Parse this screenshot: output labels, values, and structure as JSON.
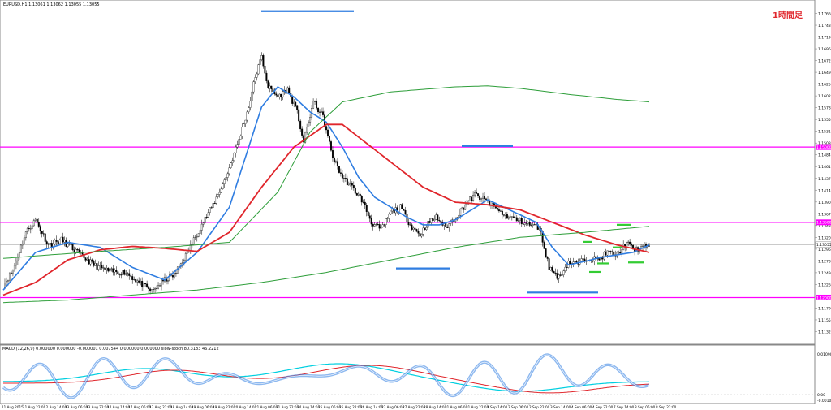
{
  "header": {
    "symbol_info": "EURUSD,H1 1.13061 1.13062 1.13055 1.13055",
    "timeframe_label": "1時間足"
  },
  "colors": {
    "background": "#ffffff",
    "candle_up": "#ffffff",
    "candle_down": "#000000",
    "sma_fast": "#2f7de1",
    "sma_mid": "#e0262c",
    "sma_slow": "#2e9e3a",
    "sma_long": "#2e9e3a",
    "level_line": "#ff00ff",
    "range_marker": "#2f7de1",
    "green_marker": "#33cc33",
    "macd_main": "#2f7de1",
    "macd_signal": "#00cfe0",
    "macd_red": "#e0262c",
    "grid": "#c8c8c8"
  },
  "chart_data": [
    {
      "type": "candlestick",
      "y_axis_ticks": [
        "1.17900",
        "1.17665",
        "1.17430",
        "1.17195",
        "1.16960",
        "1.16725",
        "1.16490",
        "1.16255",
        "1.16020",
        "1.15785",
        "1.15550",
        "1.15315",
        "1.15080",
        "1.14845",
        "1.14610",
        "1.14375",
        "1.14140",
        "1.13905",
        "1.13670",
        "1.13435",
        "1.13200",
        "1.12965",
        "1.12730",
        "1.12495",
        "1.12260",
        "1.12025",
        "1.11790",
        "1.11555",
        "1.11320",
        "1.11085"
      ],
      "ylim": [
        1.11085,
        1.179
      ],
      "x_axis_ticks": [
        "11 Aug 2015",
        "11 Aug 22:00",
        "12 Aug 14:00",
        "13 Aug 06:00",
        "13 Aug 22:00",
        "14 Aug 14:00",
        "17 Aug 06:00",
        "17 Aug 22:00",
        "18 Aug 14:00",
        "19 Aug 06:00",
        "19 Aug 22:00",
        "20 Aug 14:00",
        "21 Aug 06:00",
        "21 Aug 22:00",
        "24 Aug 14:00",
        "25 Aug 06:00",
        "25 Aug 22:00",
        "26 Aug 14:00",
        "27 Aug 06:00",
        "27 Aug 22:00",
        "28 Aug 14:00",
        "31 Aug 06:00",
        "31 Aug 22:00",
        "1 Sep 14:00",
        "2 Sep 06:00",
        "2 Sep 22:00",
        "3 Sep 14:00",
        "4 Sep 06:00",
        "4 Sep 22:00",
        "7 Sep 14:00",
        "8 Sep 06:00",
        "8 Sep 22:00"
      ],
      "key_levels": [
        {
          "price": 1.15,
          "tag": "1.15000"
        },
        {
          "price": 1.135,
          "tag": "1.13500"
        },
        {
          "price": 1.12,
          "tag": "1.12000"
        }
      ],
      "current_price": {
        "price": 1.13055,
        "tag": "1.13055"
      },
      "close_anchors": [
        [
          0,
          1.1225
        ],
        [
          6,
          1.1255
        ],
        [
          14,
          1.133
        ],
        [
          20,
          1.1355
        ],
        [
          28,
          1.1305
        ],
        [
          36,
          1.1315
        ],
        [
          46,
          1.129
        ],
        [
          56,
          1.1265
        ],
        [
          66,
          1.1252
        ],
        [
          76,
          1.125
        ],
        [
          84,
          1.123
        ],
        [
          92,
          1.1212
        ],
        [
          100,
          1.1235
        ],
        [
          106,
          1.1245
        ],
        [
          114,
          1.129
        ],
        [
          122,
          1.134
        ],
        [
          130,
          1.1385
        ],
        [
          138,
          1.144
        ],
        [
          146,
          1.1515
        ],
        [
          152,
          1.158
        ],
        [
          156,
          1.164
        ],
        [
          160,
          1.168
        ],
        [
          164,
          1.162
        ],
        [
          170,
          1.16
        ],
        [
          176,
          1.1615
        ],
        [
          182,
          1.157
        ],
        [
          186,
          1.151
        ],
        [
          192,
          1.159
        ],
        [
          198,
          1.156
        ],
        [
          204,
          1.148
        ],
        [
          210,
          1.144
        ],
        [
          216,
          1.142
        ],
        [
          222,
          1.1395
        ],
        [
          228,
          1.135
        ],
        [
          234,
          1.1335
        ],
        [
          240,
          1.137
        ],
        [
          246,
          1.138
        ],
        [
          252,
          1.1345
        ],
        [
          258,
          1.1325
        ],
        [
          262,
          1.1345
        ],
        [
          268,
          1.136
        ],
        [
          274,
          1.134
        ],
        [
          280,
          1.136
        ],
        [
          286,
          1.1385
        ],
        [
          292,
          1.1405
        ],
        [
          298,
          1.1395
        ],
        [
          304,
          1.138
        ],
        [
          310,
          1.1365
        ],
        [
          318,
          1.1355
        ],
        [
          326,
          1.1345
        ],
        [
          332,
          1.134
        ],
        [
          338,
          1.126
        ],
        [
          344,
          1.124
        ],
        [
          350,
          1.127
        ],
        [
          356,
          1.1268
        ],
        [
          362,
          1.128
        ],
        [
          368,
          1.1275
        ],
        [
          374,
          1.129
        ],
        [
          380,
          1.1285
        ],
        [
          386,
          1.131
        ],
        [
          390,
          1.1295
        ],
        [
          396,
          1.13
        ],
        [
          400,
          1.1306
        ]
      ],
      "series": [
        {
          "name": "",
          "period_hint": "fast",
          "color_key": "sma_fast",
          "anchors": [
            [
              0,
              1.1215
            ],
            [
              20,
              1.129
            ],
            [
              40,
              1.131
            ],
            [
              60,
              1.13
            ],
            [
              80,
              1.126
            ],
            [
              100,
              1.1235
            ],
            [
              120,
              1.129
            ],
            [
              140,
              1.138
            ],
            [
              150,
              1.148
            ],
            [
              160,
              1.158
            ],
            [
              170,
              1.162
            ],
            [
              180,
              1.16
            ],
            [
              190,
              1.157
            ],
            [
              200,
              1.155
            ],
            [
              210,
              1.15
            ],
            [
              220,
              1.144
            ],
            [
              230,
              1.14
            ],
            [
              240,
              1.138
            ],
            [
              250,
              1.136
            ],
            [
              260,
              1.1345
            ],
            [
              270,
              1.1345
            ],
            [
              280,
              1.1355
            ],
            [
              290,
              1.1375
            ],
            [
              300,
              1.1395
            ],
            [
              310,
              1.138
            ],
            [
              320,
              1.1365
            ],
            [
              330,
              1.135
            ],
            [
              340,
              1.13
            ],
            [
              350,
              1.1265
            ],
            [
              360,
              1.1272
            ],
            [
              370,
              1.128
            ],
            [
              380,
              1.1285
            ],
            [
              390,
              1.129
            ],
            [
              400,
              1.1305
            ]
          ]
        },
        {
          "name": "",
          "period_hint": "mid",
          "color_key": "sma_mid",
          "anchors": [
            [
              0,
              1.1205
            ],
            [
              20,
              1.123
            ],
            [
              40,
              1.1275
            ],
            [
              60,
              1.1295
            ],
            [
              80,
              1.1302
            ],
            [
              100,
              1.1298
            ],
            [
              120,
              1.1292
            ],
            [
              140,
              1.133
            ],
            [
              160,
              1.142
            ],
            [
              180,
              1.15
            ],
            [
              200,
              1.1545
            ],
            [
              210,
              1.1545
            ],
            [
              220,
              1.152
            ],
            [
              240,
              1.147
            ],
            [
              260,
              1.142
            ],
            [
              280,
              1.139
            ],
            [
              300,
              1.1385
            ],
            [
              320,
              1.1375
            ],
            [
              340,
              1.135
            ],
            [
              360,
              1.1325
            ],
            [
              380,
              1.1305
            ],
            [
              400,
              1.129
            ]
          ]
        },
        {
          "name": "",
          "period_hint": "slow",
          "color_key": "sma_slow",
          "anchors": [
            [
              0,
              1.1278
            ],
            [
              50,
              1.129
            ],
            [
              100,
              1.13
            ],
            [
              140,
              1.131
            ],
            [
              170,
              1.141
            ],
            [
              190,
              1.153
            ],
            [
              210,
              1.159
            ],
            [
              240,
              1.161
            ],
            [
              280,
              1.162
            ],
            [
              300,
              1.1622
            ],
            [
              320,
              1.1617
            ],
            [
              350,
              1.1605
            ],
            [
              380,
              1.1595
            ],
            [
              400,
              1.159
            ]
          ]
        },
        {
          "name": "",
          "period_hint": "long",
          "color_key": "sma_long",
          "anchors": [
            [
              0,
              1.119
            ],
            [
              40,
              1.1195
            ],
            [
              80,
              1.1205
            ],
            [
              120,
              1.1215
            ],
            [
              160,
              1.123
            ],
            [
              200,
              1.125
            ],
            [
              240,
              1.1275
            ],
            [
              280,
              1.13
            ],
            [
              320,
              1.132
            ],
            [
              360,
              1.133
            ],
            [
              400,
              1.1342
            ]
          ]
        }
      ]
    },
    {
      "type": "line",
      "indicator_info": "MACD (12,26,9) 0.000000 0.000000 -0.000001 0.007544 0.000000 0.000000 slow-stoch 80.3183 46.2212",
      "y_axis_ticks": [
        "0.010900",
        "0.00",
        "-0.001035"
      ],
      "series": [
        {
          "name": "",
          "color_key": "macd_main",
          "shape": "fast-oscillator"
        },
        {
          "name": "",
          "color_key": "macd_signal",
          "shape": "smooth-wave"
        },
        {
          "name": "",
          "color_key": "macd_red",
          "shape": "smooth-wave-lagged"
        }
      ]
    }
  ]
}
